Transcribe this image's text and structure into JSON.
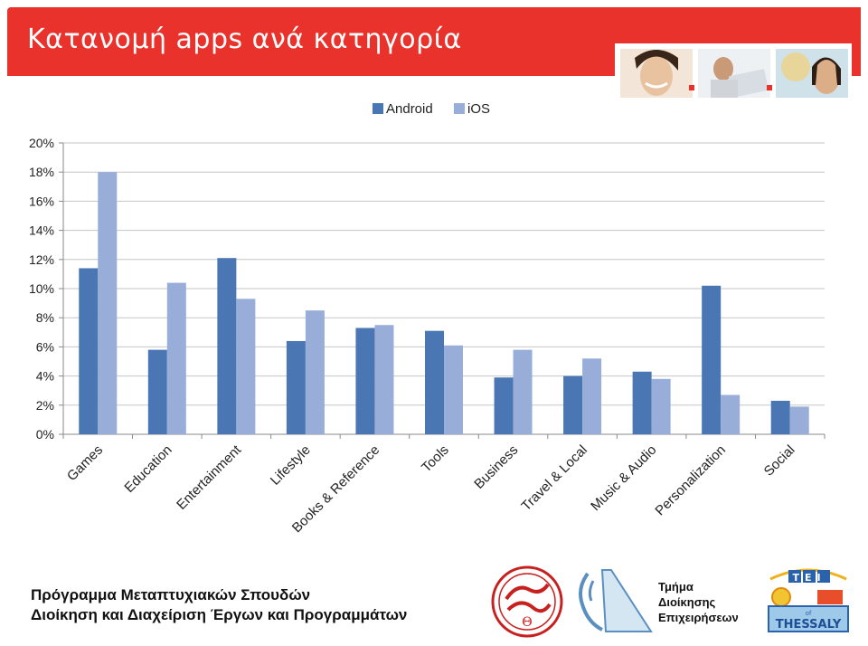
{
  "header": {
    "title": "Κατανομή apps ανά κατηγορία",
    "accent_color": "#e8322b",
    "photos": [
      "woman-headset-photo",
      "man-laptop-photo",
      "woman-headset-map-photo"
    ]
  },
  "chart_data": {
    "type": "bar",
    "categories": [
      "Games",
      "Education",
      "Entertainment",
      "Lifestyle",
      "Books & Reference",
      "Tools",
      "Business",
      "Travel & Local",
      "Music & Audio",
      "Personalization",
      "Social"
    ],
    "series": [
      {
        "name": "Android",
        "color": "#4a76b4",
        "values": [
          11.4,
          5.8,
          12.1,
          6.4,
          7.3,
          7.1,
          3.9,
          4.0,
          4.3,
          10.2,
          2.3
        ]
      },
      {
        "name": "iOS",
        "color": "#98aed9",
        "values": [
          18.0,
          10.4,
          9.3,
          8.5,
          7.5,
          6.1,
          5.8,
          5.2,
          3.8,
          2.7,
          1.9
        ]
      }
    ],
    "ylim": [
      0,
      20
    ],
    "yticks": [
      0,
      2,
      4,
      6,
      8,
      10,
      12,
      14,
      16,
      18,
      20
    ],
    "ytick_labels": [
      "0%",
      "2%",
      "4%",
      "6%",
      "8%",
      "10%",
      "12%",
      "14%",
      "16%",
      "18%",
      "20%"
    ],
    "grid": true,
    "legend_position": "top"
  },
  "footer": {
    "program_line1": "Πρόγραμμα Μεταπτυχιακών Σπουδών",
    "program_line2": "Διοίκηση και Διαχείριση Έργων και Προγραμμάτων",
    "dept_line1": "Τμήμα",
    "dept_line2": "Διοίκησης",
    "dept_line3": "Επιχειρήσεων",
    "tei_logo_text": "THESSALY",
    "tei_logo_top": "TEI",
    "tei_logo_of": "of"
  }
}
